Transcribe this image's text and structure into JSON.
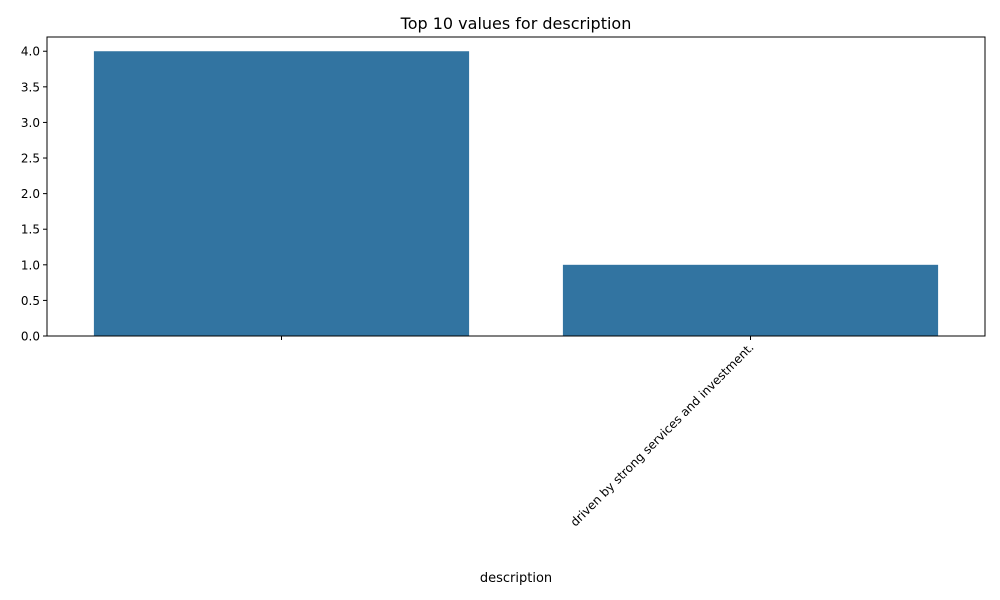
{
  "chart_data": {
    "type": "bar",
    "title": "Top 10 values for description",
    "xlabel": "description",
    "ylabel": "",
    "categories": [
      "",
      "driven by strong services and investment."
    ],
    "values": [
      4,
      1
    ],
    "ylim": [
      0,
      4.2
    ],
    "yticks": [
      0.0,
      0.5,
      1.0,
      1.5,
      2.0,
      2.5,
      3.0,
      3.5,
      4.0
    ],
    "ytick_labels": [
      "0.0",
      "0.5",
      "1.0",
      "1.5",
      "2.0",
      "2.5",
      "3.0",
      "3.5",
      "4.0"
    ],
    "bar_color": "#3274a1",
    "grid": false,
    "legend": "none"
  }
}
